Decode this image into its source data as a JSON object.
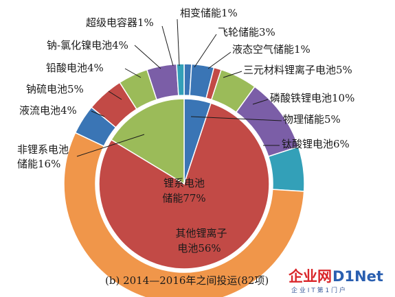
{
  "chart_data": {
    "type": "pie",
    "caption": "(b) 2014—2016年之间投运(82项)",
    "inner_ring": [
      {
        "name": "物理储能5%",
        "value": 5,
        "color": "#3a75b5"
      },
      {
        "name": "锂系电池储能77%",
        "value": 77,
        "color": "#c24a46"
      },
      {
        "name": "非锂系电池储能16%",
        "value": 16,
        "color": "#9bbb59"
      }
    ],
    "outer_ring": [
      {
        "name": "相变储能1%",
        "value": 1,
        "color": "#3a75b5"
      },
      {
        "name": "飞轮储能3%",
        "value": 3,
        "color": "#3a75b5"
      },
      {
        "name": "液态空气储能1%",
        "value": 1,
        "color": "#c24a46"
      },
      {
        "name": "三元材料锂离子电池5%",
        "value": 5,
        "color": "#9bbb59"
      },
      {
        "name": "磷酸铁锂电池10%",
        "value": 10,
        "color": "#7b5ea7"
      },
      {
        "name": "钛酸锂电池6%",
        "value": 6,
        "color": "#33a0b8"
      },
      {
        "name": "其他锂离子电池56%",
        "value": 56,
        "color": "#f0964a"
      },
      {
        "name": "液流电池4%",
        "value": 4,
        "color": "#3a75b5"
      },
      {
        "name": "钠硫电池5%",
        "value": 5,
        "color": "#c24a46"
      },
      {
        "name": "铅酸电池4%",
        "value": 4,
        "color": "#9bbb59"
      },
      {
        "name": "钠-氯化镍电池4%",
        "value": 4,
        "color": "#7b5ea7"
      },
      {
        "name": "超级电容器1%",
        "value": 1,
        "color": "#33a0b8"
      }
    ]
  },
  "watermark": {
    "brand_a": "企业网",
    "brand_b": "D1Net",
    "tagline": "企 业 I T 第 1 门 户",
    "color_a": "#d9262a",
    "color_b": "#2a5fb0"
  }
}
